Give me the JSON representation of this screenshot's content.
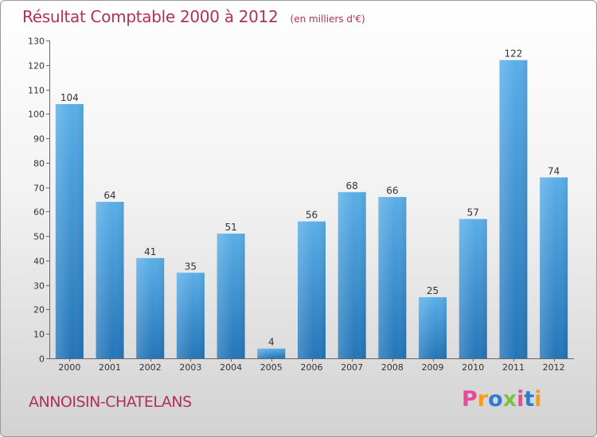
{
  "header": {
    "title": "Résultat Comptable 2000 à 2012",
    "subtitle": "(en milliers d'€)"
  },
  "footer": {
    "commune": "ANNOISIN-CHATELANS",
    "logo_text": "Proxiti"
  },
  "colors": {
    "title": "#b0305a",
    "bar_top": "#5aaee8",
    "bar_bottom": "#2475b8",
    "logo": [
      "#e84a9a",
      "#f39c22",
      "#2a7fd4",
      "#7dc242",
      "#e84a9a",
      "#2a7fd4",
      "#f39c22"
    ]
  },
  "chart_data": {
    "type": "bar",
    "categories": [
      "2000",
      "2001",
      "2002",
      "2003",
      "2004",
      "2005",
      "2006",
      "2007",
      "2008",
      "2009",
      "2010",
      "2011",
      "2012"
    ],
    "values": [
      104,
      64,
      41,
      35,
      51,
      4,
      56,
      68,
      66,
      25,
      57,
      122,
      74
    ],
    "ylim": [
      0,
      130
    ],
    "yticks": [
      0,
      10,
      20,
      30,
      40,
      50,
      60,
      70,
      80,
      90,
      100,
      110,
      120,
      130
    ],
    "grid": false,
    "title": "Résultat Comptable 2000 à 2012"
  }
}
